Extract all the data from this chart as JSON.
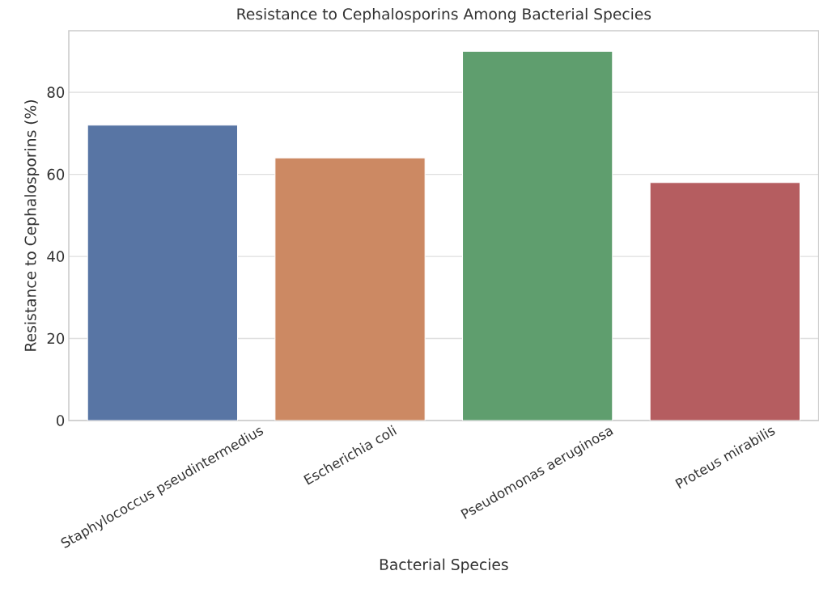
{
  "chart_data": {
    "type": "bar",
    "title": "Resistance to Cephalosporins Among Bacterial Species",
    "xlabel": "Bacterial Species",
    "ylabel": "Resistance to Cephalosporins (%)",
    "categories": [
      "Staphylococcus pseudintermedius",
      "Escherichia coli",
      "Pseudomonas aeruginosa",
      "Proteus mirabilis"
    ],
    "values": [
      72,
      64,
      90,
      58
    ],
    "colors": [
      "#5875a4",
      "#cc8963",
      "#5f9e6e",
      "#b55d60"
    ],
    "ylim": [
      0,
      95
    ],
    "yticks": [
      0,
      20,
      40,
      60,
      80
    ],
    "grid": "y"
  }
}
